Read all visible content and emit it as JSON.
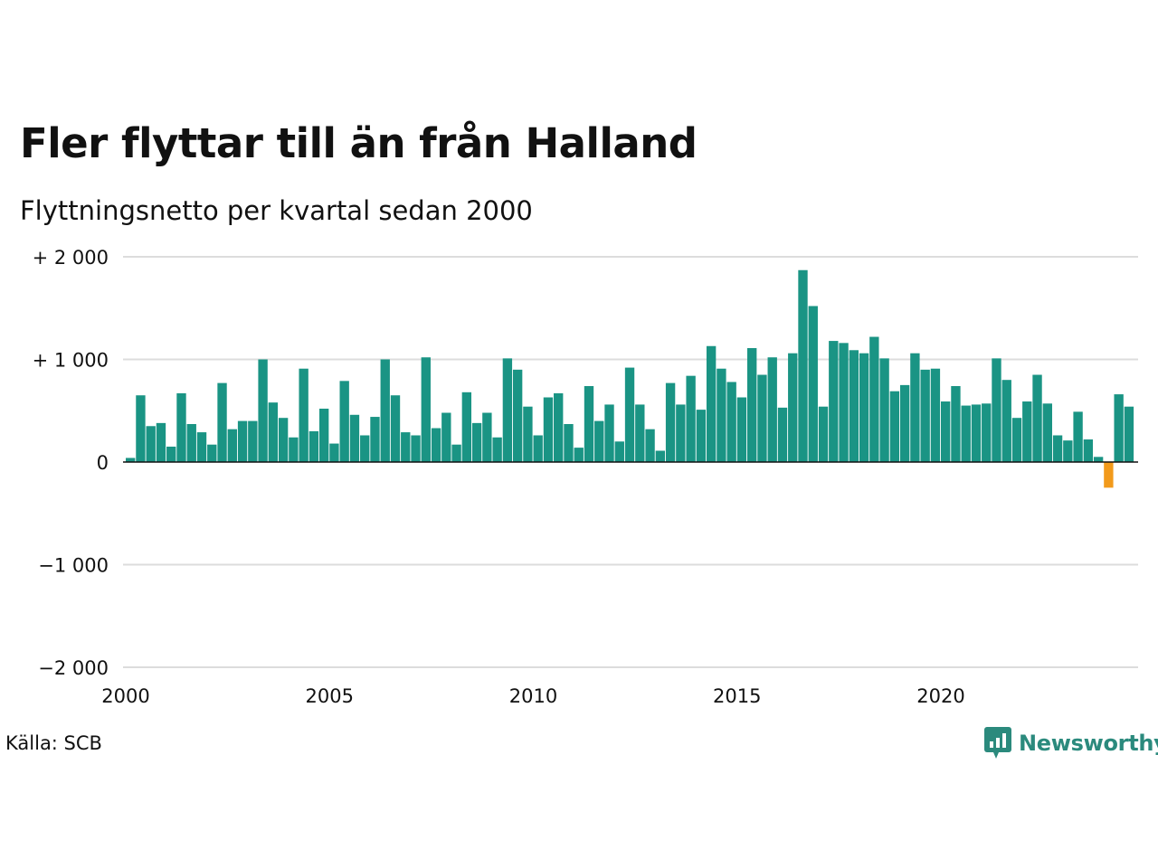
{
  "title": "Fler flyttar till än från Halland",
  "subtitle": "Flyttningsnetto per kvartal sedan 2000",
  "source": "Källa: SCB",
  "brand": "Newsworthy",
  "colors": {
    "positive": "#1a9484",
    "negative": "#f29a1b",
    "brand": "#2b8a7d"
  },
  "chart_data": {
    "type": "bar",
    "title": "Fler flyttar till än från Halland",
    "subtitle": "Flyttningsnetto per kvartal sedan 2000",
    "ylim": [
      -2000,
      2000
    ],
    "y_ticks": [
      {
        "value": 2000,
        "label": "+ 2 000"
      },
      {
        "value": 1000,
        "label": "+ 1 000"
      },
      {
        "value": 0,
        "label": "0"
      },
      {
        "value": -1000,
        "label": "−1 000"
      },
      {
        "value": -2000,
        "label": "−2 000"
      }
    ],
    "x_ticks": [
      "2000",
      "2005",
      "2010",
      "2015",
      "2020"
    ],
    "grid": true,
    "start": "2000 Q1",
    "values": [
      40,
      650,
      350,
      380,
      150,
      670,
      370,
      290,
      170,
      770,
      320,
      400,
      400,
      1000,
      580,
      430,
      240,
      910,
      300,
      520,
      180,
      790,
      460,
      260,
      440,
      1000,
      650,
      290,
      260,
      1020,
      330,
      480,
      170,
      680,
      380,
      480,
      240,
      1010,
      900,
      540,
      260,
      630,
      670,
      370,
      140,
      740,
      400,
      560,
      200,
      920,
      560,
      320,
      110,
      770,
      560,
      840,
      510,
      1130,
      910,
      780,
      630,
      1110,
      850,
      1020,
      530,
      1060,
      1870,
      1520,
      540,
      1180,
      1160,
      1090,
      1060,
      1220,
      1010,
      690,
      750,
      1060,
      900,
      910,
      590,
      740,
      550,
      560,
      570,
      1010,
      800,
      430,
      590,
      850,
      570,
      260,
      210,
      490,
      220,
      50,
      -250,
      660,
      540
    ]
  }
}
